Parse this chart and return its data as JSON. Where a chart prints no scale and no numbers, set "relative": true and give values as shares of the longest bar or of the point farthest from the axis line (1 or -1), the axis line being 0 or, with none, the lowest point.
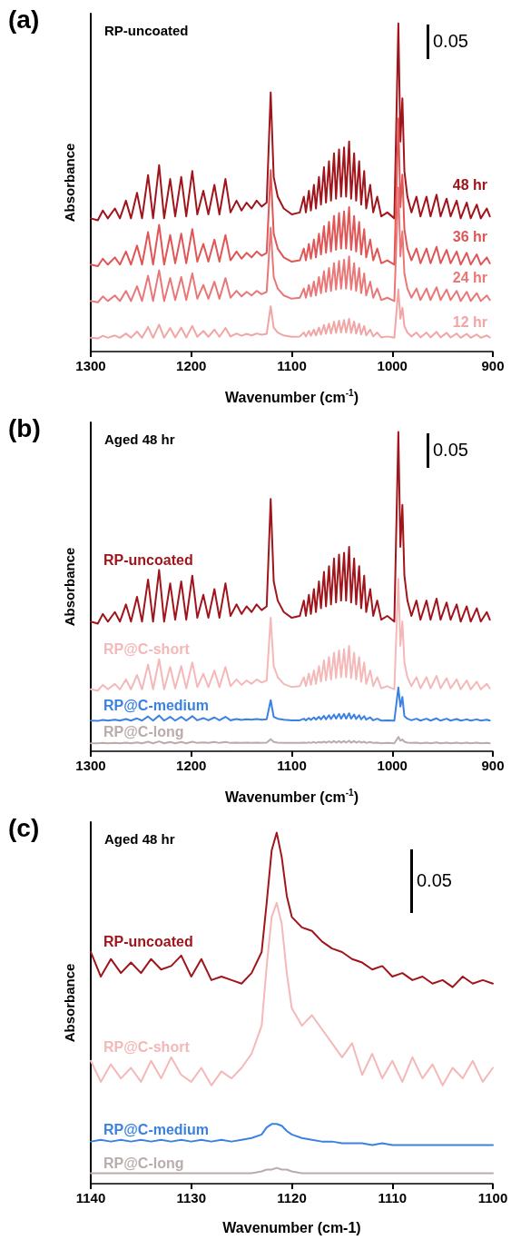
{
  "chart_data": [
    {
      "type": "line",
      "title": "(a)",
      "subtitle": "RP-uncoated",
      "xlabel": "Wavenumber (cm$^{-1}$)",
      "ylabel": "Absorbance",
      "annotations": [
        "0.05"
      ],
      "relative": true,
      "marker": "none",
      "tick_labels": "x",
      "xlim": [
        1300,
        900
      ],
      "xticks": [
        1300,
        1200,
        1100,
        1000,
        900
      ],
      "x": [
        1300,
        1293,
        1288,
        1283,
        1276,
        1271,
        1265,
        1260,
        1254,
        1249,
        1243,
        1238,
        1232,
        1227,
        1221,
        1216,
        1210,
        1205,
        1199,
        1194,
        1188,
        1183,
        1177,
        1172,
        1166,
        1161,
        1155,
        1150,
        1145,
        1140,
        1135,
        1130,
        1125,
        1121,
        1118,
        1114,
        1108,
        1100,
        1092,
        1088,
        1086,
        1083,
        1081,
        1078,
        1076,
        1073,
        1071,
        1068,
        1066,
        1063,
        1061,
        1058,
        1056,
        1053,
        1051,
        1048,
        1046,
        1043,
        1041,
        1038,
        1036,
        1033,
        1031,
        1028,
        1026,
        1022,
        1019,
        1015,
        1011,
        1005,
        998,
        994,
        992,
        990,
        988,
        985,
        981,
        976,
        972,
        966,
        962,
        956,
        952,
        946,
        942,
        936,
        932,
        926,
        922,
        916,
        912,
        906,
        903
      ],
      "series": [
        {
          "name": "48 hr",
          "color": "#a0151b",
          "values": [
            0.406,
            0.4,
            0.43,
            0.406,
            0.436,
            0.406,
            0.46,
            0.406,
            0.484,
            0.406,
            0.538,
            0.406,
            0.568,
            0.406,
            0.526,
            0.412,
            0.532,
            0.412,
            0.55,
            0.418,
            0.49,
            0.418,
            0.508,
            0.418,
            0.526,
            0.424,
            0.46,
            0.43,
            0.454,
            0.436,
            0.46,
            0.442,
            0.454,
            0.79,
            0.532,
            0.472,
            0.436,
            0.418,
            0.424,
            0.472,
            0.424,
            0.49,
            0.43,
            0.508,
            0.436,
            0.532,
            0.448,
            0.562,
            0.454,
            0.58,
            0.46,
            0.604,
            0.466,
            0.616,
            0.472,
            0.622,
            0.472,
            0.64,
            0.466,
            0.604,
            0.46,
            0.58,
            0.448,
            0.55,
            0.436,
            0.508,
            0.424,
            0.472,
            0.412,
            0.424,
            0.406,
            1.0,
            0.64,
            0.772,
            0.55,
            0.472,
            0.424,
            0.472,
            0.412,
            0.472,
            0.412,
            0.478,
            0.412,
            0.466,
            0.412,
            0.46,
            0.406,
            0.454,
            0.406,
            0.448,
            0.406,
            0.436,
            0.412
          ]
        },
        {
          "name": "36 hr",
          "color": "#e05555",
          "values": [
            0.265,
            0.26,
            0.283,
            0.265,
            0.287,
            0.265,
            0.305,
            0.265,
            0.323,
            0.265,
            0.364,
            0.265,
            0.386,
            0.265,
            0.355,
            0.269,
            0.359,
            0.269,
            0.373,
            0.274,
            0.328,
            0.274,
            0.341,
            0.274,
            0.355,
            0.278,
            0.305,
            0.283,
            0.301,
            0.287,
            0.305,
            0.292,
            0.301,
            0.553,
            0.359,
            0.314,
            0.287,
            0.274,
            0.278,
            0.314,
            0.278,
            0.328,
            0.283,
            0.341,
            0.287,
            0.359,
            0.296,
            0.382,
            0.301,
            0.395,
            0.305,
            0.413,
            0.31,
            0.422,
            0.314,
            0.427,
            0.314,
            0.44,
            0.31,
            0.413,
            0.305,
            0.395,
            0.296,
            0.373,
            0.287,
            0.341,
            0.278,
            0.314,
            0.269,
            0.278,
            0.265,
            0.71,
            0.44,
            0.539,
            0.373,
            0.314,
            0.278,
            0.314,
            0.269,
            0.314,
            0.269,
            0.319,
            0.269,
            0.31,
            0.269,
            0.305,
            0.265,
            0.301,
            0.265,
            0.296,
            0.265,
            0.287,
            0.269
          ]
        },
        {
          "name": "24 hr",
          "color": "#e97777",
          "values": [
            0.154,
            0.15,
            0.168,
            0.154,
            0.171,
            0.154,
            0.185,
            0.154,
            0.199,
            0.154,
            0.231,
            0.154,
            0.248,
            0.154,
            0.224,
            0.157,
            0.227,
            0.157,
            0.238,
            0.161,
            0.203,
            0.161,
            0.213,
            0.161,
            0.224,
            0.164,
            0.185,
            0.168,
            0.182,
            0.171,
            0.185,
            0.175,
            0.182,
            0.378,
            0.227,
            0.192,
            0.171,
            0.161,
            0.164,
            0.192,
            0.164,
            0.203,
            0.168,
            0.213,
            0.171,
            0.227,
            0.178,
            0.245,
            0.182,
            0.255,
            0.185,
            0.269,
            0.189,
            0.276,
            0.192,
            0.28,
            0.192,
            0.29,
            0.189,
            0.269,
            0.185,
            0.255,
            0.178,
            0.238,
            0.171,
            0.213,
            0.164,
            0.192,
            0.157,
            0.164,
            0.154,
            0.5,
            0.29,
            0.367,
            0.238,
            0.192,
            0.164,
            0.192,
            0.157,
            0.192,
            0.157,
            0.196,
            0.157,
            0.189,
            0.157,
            0.185,
            0.154,
            0.182,
            0.154,
            0.178,
            0.154,
            0.171,
            0.157
          ]
        },
        {
          "name": "12 hr",
          "color": "#f2a5a5",
          "values": [
            0.042,
            0.04,
            0.048,
            0.042,
            0.049,
            0.042,
            0.055,
            0.042,
            0.061,
            0.042,
            0.075,
            0.042,
            0.082,
            0.042,
            0.072,
            0.043,
            0.073,
            0.043,
            0.078,
            0.045,
            0.063,
            0.045,
            0.067,
            0.045,
            0.072,
            0.046,
            0.055,
            0.048,
            0.054,
            0.049,
            0.055,
            0.051,
            0.054,
            0.138,
            0.073,
            0.058,
            0.049,
            0.045,
            0.046,
            0.058,
            0.046,
            0.063,
            0.048,
            0.067,
            0.049,
            0.073,
            0.052,
            0.081,
            0.054,
            0.085,
            0.055,
            0.091,
            0.057,
            0.094,
            0.058,
            0.096,
            0.058,
            0.1,
            0.057,
            0.091,
            0.055,
            0.085,
            0.052,
            0.078,
            0.049,
            0.067,
            0.046,
            0.058,
            0.043,
            0.046,
            0.042,
            0.19,
            0.1,
            0.133,
            0.078,
            0.058,
            0.046,
            0.058,
            0.043,
            0.058,
            0.043,
            0.06,
            0.043,
            0.057,
            0.043,
            0.055,
            0.042,
            0.054,
            0.042,
            0.052,
            0.042,
            0.049,
            0.043
          ]
        }
      ]
    },
    {
      "type": "line",
      "title": "(b)",
      "subtitle": "Aged 48 hr",
      "xlabel": "Wavenumber (cm$^{-1}$)",
      "ylabel": "Absorbance",
      "annotations": [
        "0.05"
      ],
      "relative": true,
      "marker": "none",
      "tick_labels": "x",
      "xlim": [
        1300,
        900
      ],
      "xticks": [
        1300,
        1200,
        1100,
        1000,
        900
      ],
      "x": [
        1300,
        1293,
        1288,
        1283,
        1276,
        1271,
        1265,
        1260,
        1254,
        1249,
        1243,
        1238,
        1232,
        1227,
        1221,
        1216,
        1210,
        1205,
        1199,
        1194,
        1188,
        1183,
        1177,
        1172,
        1166,
        1161,
        1155,
        1150,
        1145,
        1140,
        1135,
        1130,
        1125,
        1121,
        1118,
        1114,
        1108,
        1100,
        1092,
        1088,
        1086,
        1083,
        1081,
        1078,
        1076,
        1073,
        1071,
        1068,
        1066,
        1063,
        1061,
        1058,
        1056,
        1053,
        1051,
        1048,
        1046,
        1043,
        1041,
        1038,
        1036,
        1033,
        1031,
        1028,
        1026,
        1022,
        1019,
        1015,
        1011,
        1005,
        998,
        994,
        992,
        990,
        988,
        985,
        981,
        976,
        972,
        966,
        962,
        956,
        952,
        946,
        942,
        936,
        932,
        926,
        922,
        916,
        912,
        906,
        903
      ],
      "series": [
        {
          "name": "RP-uncoated",
          "color": "#a0151b",
          "values": [
            0.406,
            0.4,
            0.43,
            0.406,
            0.436,
            0.406,
            0.46,
            0.406,
            0.484,
            0.406,
            0.538,
            0.406,
            0.568,
            0.406,
            0.526,
            0.412,
            0.532,
            0.412,
            0.55,
            0.418,
            0.49,
            0.418,
            0.508,
            0.418,
            0.526,
            0.424,
            0.46,
            0.43,
            0.454,
            0.436,
            0.46,
            0.442,
            0.454,
            0.79,
            0.532,
            0.472,
            0.436,
            0.418,
            0.424,
            0.472,
            0.424,
            0.49,
            0.43,
            0.508,
            0.436,
            0.532,
            0.448,
            0.562,
            0.454,
            0.58,
            0.46,
            0.604,
            0.466,
            0.616,
            0.472,
            0.622,
            0.472,
            0.64,
            0.466,
            0.604,
            0.46,
            0.58,
            0.448,
            0.55,
            0.436,
            0.508,
            0.424,
            0.472,
            0.412,
            0.424,
            0.406,
            1.0,
            0.64,
            0.772,
            0.55,
            0.472,
            0.424,
            0.472,
            0.412,
            0.472,
            0.412,
            0.478,
            0.412,
            0.466,
            0.412,
            0.46,
            0.406,
            0.454,
            0.406,
            0.448,
            0.406,
            0.436,
            0.412
          ]
        },
        {
          "name": "RP@C-short",
          "color": "#f4b8b8",
          "values": [
            0.194,
            0.19,
            0.208,
            0.194,
            0.211,
            0.194,
            0.225,
            0.194,
            0.239,
            0.194,
            0.271,
            0.194,
            0.288,
            0.194,
            0.264,
            0.197,
            0.267,
            0.197,
            0.278,
            0.201,
            0.243,
            0.201,
            0.253,
            0.201,
            0.264,
            0.204,
            0.225,
            0.208,
            0.222,
            0.211,
            0.225,
            0.215,
            0.222,
            0.418,
            0.267,
            0.232,
            0.211,
            0.201,
            0.204,
            0.232,
            0.204,
            0.243,
            0.208,
            0.253,
            0.211,
            0.267,
            0.218,
            0.285,
            0.222,
            0.295,
            0.225,
            0.309,
            0.229,
            0.316,
            0.232,
            0.32,
            0.232,
            0.33,
            0.229,
            0.309,
            0.225,
            0.295,
            0.218,
            0.278,
            0.211,
            0.253,
            0.204,
            0.232,
            0.197,
            0.204,
            0.194,
            0.54,
            0.33,
            0.407,
            0.278,
            0.232,
            0.204,
            0.232,
            0.197,
            0.232,
            0.197,
            0.236,
            0.197,
            0.229,
            0.197,
            0.225,
            0.194,
            0.222,
            0.194,
            0.218,
            0.194,
            0.211,
            0.197
          ]
        },
        {
          "name": "RP@C-medium",
          "color": "#3b82e0",
          "values": [
            0.096,
            0.095,
            0.098,
            0.096,
            0.099,
            0.096,
            0.101,
            0.096,
            0.103,
            0.096,
            0.109,
            0.096,
            0.112,
            0.096,
            0.108,
            0.096,
            0.108,
            0.096,
            0.11,
            0.097,
            0.104,
            0.097,
            0.106,
            0.097,
            0.108,
            0.097,
            0.101,
            0.098,
            0.1,
            0.099,
            0.101,
            0.099,
            0.1,
            0.16,
            0.108,
            0.102,
            0.099,
            0.097,
            0.097,
            0.102,
            0.097,
            0.104,
            0.098,
            0.106,
            0.099,
            0.108,
            0.1,
            0.111,
            0.1,
            0.113,
            0.101,
            0.115,
            0.102,
            0.117,
            0.102,
            0.117,
            0.102,
            0.119,
            0.102,
            0.115,
            0.101,
            0.113,
            0.1,
            0.11,
            0.099,
            0.106,
            0.097,
            0.102,
            0.096,
            0.097,
            0.096,
            0.2,
            0.14,
            0.17,
            0.11,
            0.102,
            0.097,
            0.102,
            0.096,
            0.102,
            0.096,
            0.103,
            0.096,
            0.102,
            0.096,
            0.101,
            0.096,
            0.1,
            0.096,
            0.1,
            0.096,
            0.099,
            0.096
          ]
        },
        {
          "name": "RP@C-long",
          "color": "#b9acaa",
          "values": [
            0.025,
            0.025,
            0.026,
            0.025,
            0.026,
            0.025,
            0.027,
            0.025,
            0.028,
            0.025,
            0.03,
            0.025,
            0.031,
            0.025,
            0.029,
            0.025,
            0.029,
            0.025,
            0.03,
            0.026,
            0.028,
            0.026,
            0.029,
            0.026,
            0.029,
            0.026,
            0.027,
            0.026,
            0.027,
            0.026,
            0.027,
            0.026,
            0.027,
            0.038,
            0.029,
            0.027,
            0.026,
            0.026,
            0.026,
            0.027,
            0.026,
            0.028,
            0.026,
            0.029,
            0.026,
            0.029,
            0.027,
            0.03,
            0.027,
            0.031,
            0.027,
            0.032,
            0.027,
            0.032,
            0.027,
            0.032,
            0.027,
            0.033,
            0.027,
            0.032,
            0.027,
            0.031,
            0.027,
            0.03,
            0.026,
            0.029,
            0.026,
            0.027,
            0.025,
            0.026,
            0.025,
            0.045,
            0.033,
            0.037,
            0.03,
            0.027,
            0.026,
            0.027,
            0.025,
            0.027,
            0.025,
            0.028,
            0.025,
            0.027,
            0.025,
            0.027,
            0.025,
            0.027,
            0.025,
            0.027,
            0.025,
            0.026,
            0.025
          ]
        }
      ]
    },
    {
      "type": "line",
      "title": "(c)",
      "subtitle": "Aged 48 hr",
      "xlabel": "Wavenumber (cm-1)",
      "ylabel": "Absorbance",
      "annotations": [
        "0.05"
      ],
      "relative": true,
      "marker": "none",
      "tick_labels": "x",
      "xlim": [
        1140,
        1100
      ],
      "xticks": [
        1140,
        1130,
        1120,
        1110,
        1100
      ],
      "x": [
        1140,
        1139,
        1138,
        1137,
        1136,
        1135,
        1134,
        1133,
        1132,
        1131,
        1130,
        1129,
        1128,
        1127,
        1126,
        1125,
        1124,
        1123,
        1122.5,
        1122,
        1121.5,
        1121,
        1120.5,
        1120,
        1119,
        1118,
        1117,
        1116,
        1115,
        1114,
        1113,
        1112,
        1111,
        1110,
        1109,
        1108,
        1107,
        1106,
        1105,
        1104,
        1103,
        1102,
        1101,
        1100
      ],
      "series": [
        {
          "name": "RP-uncoated",
          "color": "#a0151b",
          "values": [
            0.66,
            0.59,
            0.64,
            0.6,
            0.63,
            0.6,
            0.64,
            0.61,
            0.62,
            0.65,
            0.59,
            0.64,
            0.58,
            0.59,
            0.58,
            0.57,
            0.6,
            0.66,
            0.8,
            0.95,
            1.0,
            0.93,
            0.82,
            0.76,
            0.73,
            0.72,
            0.69,
            0.67,
            0.66,
            0.64,
            0.63,
            0.61,
            0.62,
            0.59,
            0.6,
            0.58,
            0.59,
            0.57,
            0.58,
            0.56,
            0.59,
            0.57,
            0.58,
            0.57
          ]
        },
        {
          "name": "RP@C-short",
          "color": "#f4b8b8",
          "values": [
            0.35,
            0.29,
            0.34,
            0.3,
            0.33,
            0.29,
            0.35,
            0.3,
            0.36,
            0.31,
            0.29,
            0.33,
            0.28,
            0.32,
            0.3,
            0.33,
            0.37,
            0.45,
            0.62,
            0.76,
            0.8,
            0.74,
            0.6,
            0.5,
            0.45,
            0.48,
            0.44,
            0.4,
            0.36,
            0.4,
            0.31,
            0.37,
            0.3,
            0.35,
            0.29,
            0.36,
            0.3,
            0.34,
            0.28,
            0.33,
            0.3,
            0.35,
            0.29,
            0.33
          ]
        },
        {
          "name": "RP@C-medium",
          "color": "#3b82e0",
          "values": [
            0.12,
            0.125,
            0.12,
            0.125,
            0.12,
            0.125,
            0.12,
            0.125,
            0.12,
            0.125,
            0.12,
            0.125,
            0.12,
            0.125,
            0.12,
            0.125,
            0.13,
            0.14,
            0.16,
            0.17,
            0.17,
            0.165,
            0.15,
            0.14,
            0.13,
            0.125,
            0.12,
            0.12,
            0.115,
            0.115,
            0.115,
            0.11,
            0.115,
            0.11,
            0.11,
            0.11,
            0.11,
            0.11,
            0.11,
            0.11,
            0.11,
            0.11,
            0.11,
            0.11
          ]
        },
        {
          "name": "RP@C-long",
          "color": "#b9acaa",
          "values": [
            0.03,
            0.03,
            0.03,
            0.03,
            0.03,
            0.03,
            0.03,
            0.03,
            0.03,
            0.03,
            0.03,
            0.03,
            0.03,
            0.03,
            0.03,
            0.03,
            0.03,
            0.035,
            0.04,
            0.04,
            0.045,
            0.04,
            0.04,
            0.035,
            0.03,
            0.03,
            0.03,
            0.03,
            0.03,
            0.03,
            0.03,
            0.03,
            0.03,
            0.03,
            0.03,
            0.03,
            0.03,
            0.03,
            0.03,
            0.03,
            0.03,
            0.03,
            0.03,
            0.03
          ]
        }
      ]
    }
  ]
}
